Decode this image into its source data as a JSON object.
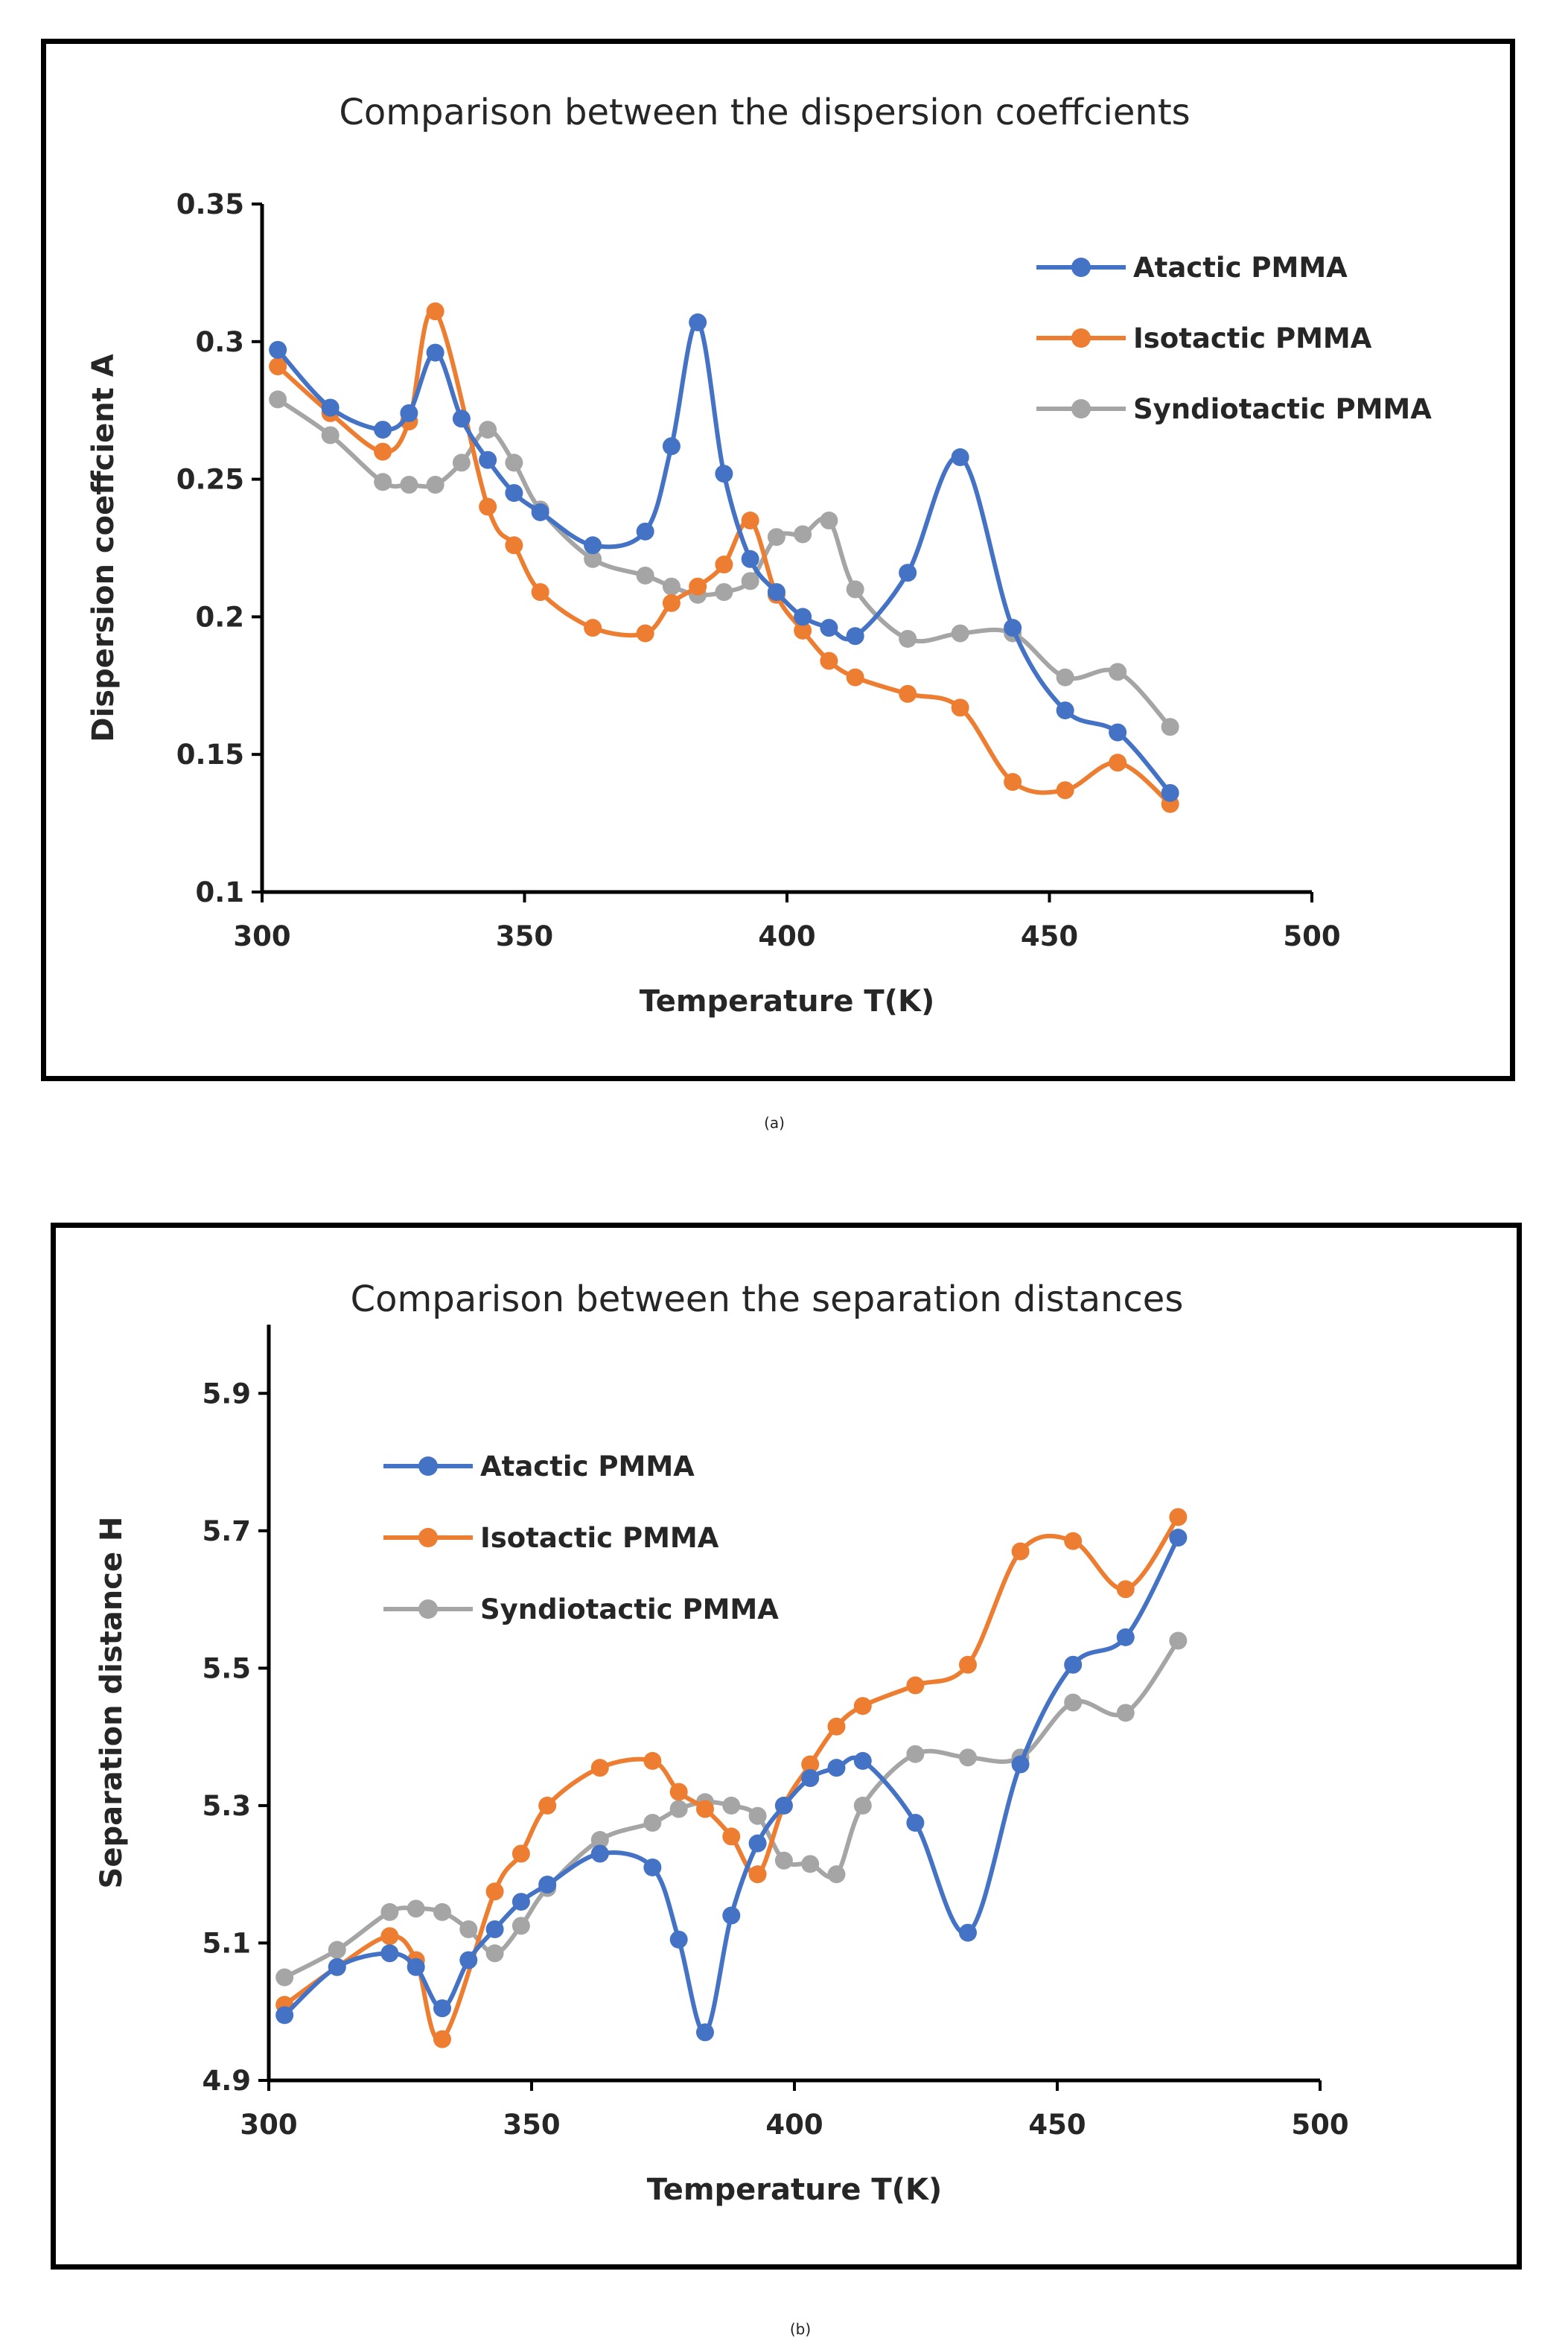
{
  "chart_data": [
    {
      "type": "line",
      "panel_label": "(a)",
      "title": "Comparison between the dispersion coeffcients",
      "xlabel": "Temperature T(K)",
      "ylabel": "Dispersion coeffcient A",
      "xlim": [
        300,
        500
      ],
      "ylim": [
        0.1,
        0.35
      ],
      "xticks": [
        "300",
        "350",
        "400",
        "450",
        "500"
      ],
      "yticks": [
        "0.1",
        "0.15",
        "0.2",
        "0.25",
        "0.3",
        "0.35"
      ],
      "legend_position": "top-right",
      "grid": false,
      "series": [
        {
          "name": "Atactic PMMA",
          "color": "#4472C4",
          "x": [
            303,
            313,
            323,
            328,
            333,
            338,
            343,
            348,
            353,
            363,
            373,
            378,
            383,
            388,
            393,
            398,
            403,
            408,
            413,
            423,
            433,
            443,
            453,
            463,
            473
          ],
          "y": [
            0.297,
            0.276,
            0.268,
            0.274,
            0.296,
            0.272,
            0.257,
            0.245,
            0.238,
            0.226,
            0.231,
            0.262,
            0.307,
            0.252,
            0.221,
            0.209,
            0.2,
            0.196,
            0.193,
            0.216,
            0.258,
            0.196,
            0.166,
            0.158,
            0.136
          ]
        },
        {
          "name": "Isotactic PMMA",
          "color": "#ED7D31",
          "x": [
            303,
            313,
            323,
            328,
            333,
            343,
            348,
            353,
            363,
            373,
            378,
            383,
            388,
            393,
            398,
            403,
            408,
            413,
            423,
            433,
            443,
            453,
            463,
            473
          ],
          "y": [
            0.291,
            0.274,
            0.26,
            0.271,
            0.311,
            0.24,
            0.226,
            0.209,
            0.196,
            0.194,
            0.205,
            0.211,
            0.219,
            0.235,
            0.208,
            0.195,
            0.184,
            0.178,
            0.172,
            0.167,
            0.14,
            0.137,
            0.147,
            0.132
          ]
        },
        {
          "name": "Syndiotactic PMMA",
          "color": "#A5A5A5",
          "x": [
            303,
            313,
            323,
            328,
            333,
            338,
            343,
            348,
            353,
            363,
            373,
            378,
            383,
            388,
            393,
            398,
            403,
            408,
            413,
            423,
            433,
            443,
            453,
            463,
            473
          ],
          "y": [
            0.279,
            0.266,
            0.249,
            0.248,
            0.248,
            0.256,
            0.268,
            0.256,
            0.239,
            0.221,
            0.215,
            0.211,
            0.208,
            0.209,
            0.213,
            0.229,
            0.23,
            0.235,
            0.21,
            0.192,
            0.194,
            0.194,
            0.178,
            0.18,
            0.16
          ]
        }
      ]
    },
    {
      "type": "line",
      "panel_label": "(b)",
      "title": "Comparison between the separation distances",
      "xlabel": "Temperature T(K)",
      "ylabel": "Separation distance H",
      "xlim": [
        300,
        500
      ],
      "ylim": [
        4.9,
        6.0
      ],
      "xticks": [
        "300",
        "350",
        "400",
        "450",
        "500"
      ],
      "yticks": [
        "4.9",
        "5.1",
        "5.3",
        "5.5",
        "5.7",
        "5.9"
      ],
      "legend_position": "top-left",
      "grid": false,
      "series": [
        {
          "name": "Atactic PMMA",
          "color": "#4472C4",
          "x": [
            303,
            313,
            323,
            328,
            333,
            338,
            343,
            348,
            353,
            363,
            373,
            378,
            383,
            388,
            393,
            398,
            403,
            408,
            413,
            423,
            433,
            443,
            453,
            463,
            473
          ],
          "y": [
            4.995,
            5.065,
            5.085,
            5.065,
            5.005,
            5.075,
            5.12,
            5.16,
            5.185,
            5.23,
            5.21,
            5.105,
            4.97,
            5.14,
            5.245,
            5.3,
            5.34,
            5.355,
            5.365,
            5.275,
            5.115,
            5.36,
            5.505,
            5.545,
            5.69
          ]
        },
        {
          "name": "Isotactic PMMA",
          "color": "#ED7D31",
          "x": [
            303,
            313,
            323,
            328,
            333,
            343,
            348,
            353,
            363,
            373,
            378,
            383,
            388,
            393,
            398,
            403,
            408,
            413,
            423,
            433,
            443,
            453,
            463,
            473
          ],
          "y": [
            5.01,
            5.065,
            5.11,
            5.075,
            4.96,
            5.175,
            5.23,
            5.3,
            5.355,
            5.365,
            5.32,
            5.295,
            5.255,
            5.2,
            5.3,
            5.36,
            5.415,
            5.445,
            5.475,
            5.505,
            5.67,
            5.685,
            5.615,
            5.72
          ]
        },
        {
          "name": "Syndiotactic PMMA",
          "color": "#A5A5A5",
          "x": [
            303,
            313,
            323,
            328,
            333,
            338,
            343,
            348,
            353,
            363,
            373,
            378,
            383,
            388,
            393,
            398,
            403,
            408,
            413,
            423,
            433,
            443,
            453,
            463,
            473
          ],
          "y": [
            5.05,
            5.09,
            5.145,
            5.15,
            5.145,
            5.12,
            5.085,
            5.125,
            5.18,
            5.25,
            5.275,
            5.295,
            5.305,
            5.3,
            5.285,
            5.22,
            5.215,
            5.2,
            5.3,
            5.375,
            5.37,
            5.37,
            5.45,
            5.435,
            5.54
          ]
        }
      ]
    }
  ]
}
